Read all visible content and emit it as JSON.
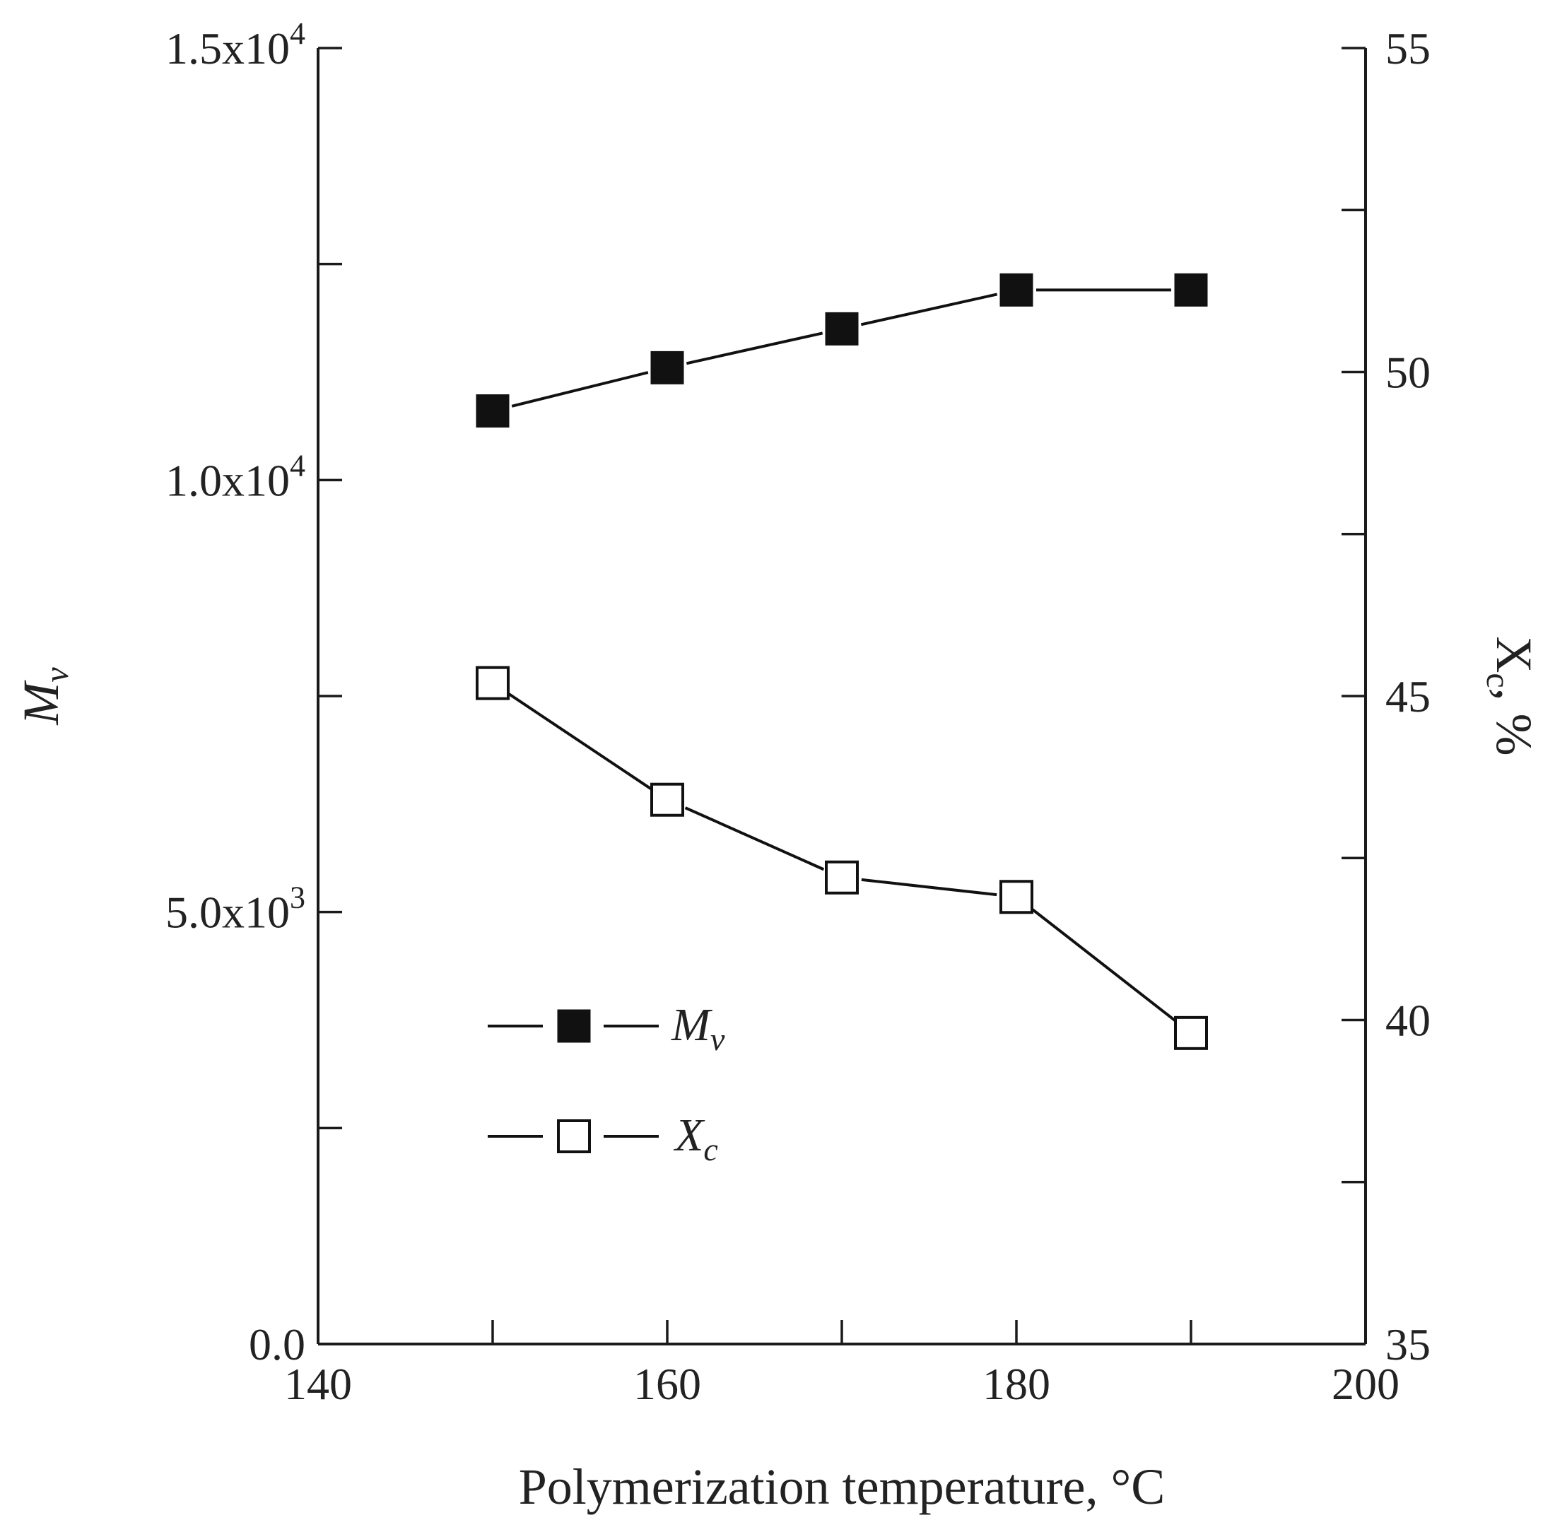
{
  "chart_data": {
    "type": "line",
    "xlabel": "Polymerization temperature, °C",
    "ylabel_left": {
      "base": "M",
      "sub": "v"
    },
    "ylabel_right": {
      "base": "X",
      "sub": "c",
      "suffix": ", %"
    },
    "xlim": [
      140,
      200
    ],
    "ylim_left": [
      0,
      15000
    ],
    "ylim_right": [
      35,
      55
    ],
    "x_ticks": [
      140,
      160,
      180,
      200
    ],
    "x_tick_labels": [
      "140",
      "160",
      "180",
      "200"
    ],
    "x_minor_ticks": [
      150,
      170,
      190
    ],
    "y_left_ticks": [
      {
        "value": 0,
        "mantissa": "0.0",
        "exp": ""
      },
      {
        "value": 5000,
        "mantissa": "5.0x10",
        "exp": "3"
      },
      {
        "value": 10000,
        "mantissa": "1.0x10",
        "exp": "4"
      },
      {
        "value": 15000,
        "mantissa": "1.5x10",
        "exp": "4"
      }
    ],
    "y_left_minor_ticks": [
      2500,
      7500,
      12500
    ],
    "y_right_ticks": [
      35,
      40,
      45,
      50,
      55
    ],
    "y_right_minor_ticks": [
      37.5,
      42.5,
      47.5,
      52.5
    ],
    "legend_position": "lower-left",
    "series": [
      {
        "name": "M_v",
        "label_base": "M",
        "label_sub": "v",
        "axis": "left",
        "marker": "filled-square",
        "x": [
          150,
          160,
          170,
          180,
          190
        ],
        "y": [
          10800,
          11300,
          11750,
          12200,
          12200
        ]
      },
      {
        "name": "X_c",
        "label_base": "X",
        "label_sub": "c",
        "axis": "right",
        "marker": "open-square",
        "x": [
          150,
          160,
          170,
          180,
          190
        ],
        "y": [
          45.2,
          43.4,
          42.2,
          41.9,
          39.8
        ]
      }
    ]
  }
}
